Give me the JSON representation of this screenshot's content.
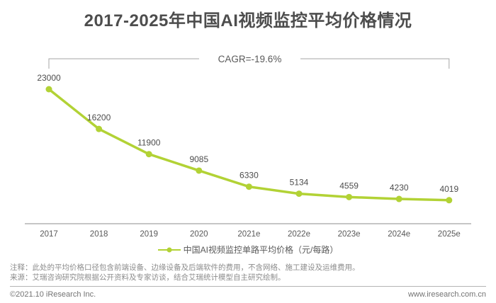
{
  "page": {
    "footer_left": "©2021.10 iResearch Inc.",
    "footer_right": "www.iresearch.com.cn"
  },
  "notes": [
    "注释：此处的平均价格口径包含前端设备、边缘设备及后端软件的费用，不含网络、施工建设及运维费用。",
    "来源：艾瑞咨询研究院根据公开资料及专家访谈，结合艾瑞统计模型自主研究绘制。"
  ],
  "colors": {
    "accent_green": "#b2d235",
    "title_gray": "#4d4d4d",
    "axis_gray": "#8c8c8c",
    "label_gray": "#595959"
  },
  "chart_data": {
    "type": "line",
    "title": "2017-2025年中国AI视频监控平均价格情况",
    "categories": [
      "2017",
      "2018",
      "2019",
      "2020",
      "2021e",
      "2022e",
      "2023e",
      "2024e",
      "2025e"
    ],
    "series": [
      {
        "name": "中国AI视频监控单路平均价格（元/每路）",
        "values": [
          23000,
          16200,
          11900,
          9085,
          6330,
          5134,
          4559,
          4230,
          4019
        ]
      }
    ],
    "annotation": "CAGR=-19.6%",
    "xlabel": "",
    "ylabel": "",
    "ylim": [
      0,
      23000
    ],
    "grid": false,
    "legend_position": "bottom",
    "line_color": "#b2d235"
  }
}
